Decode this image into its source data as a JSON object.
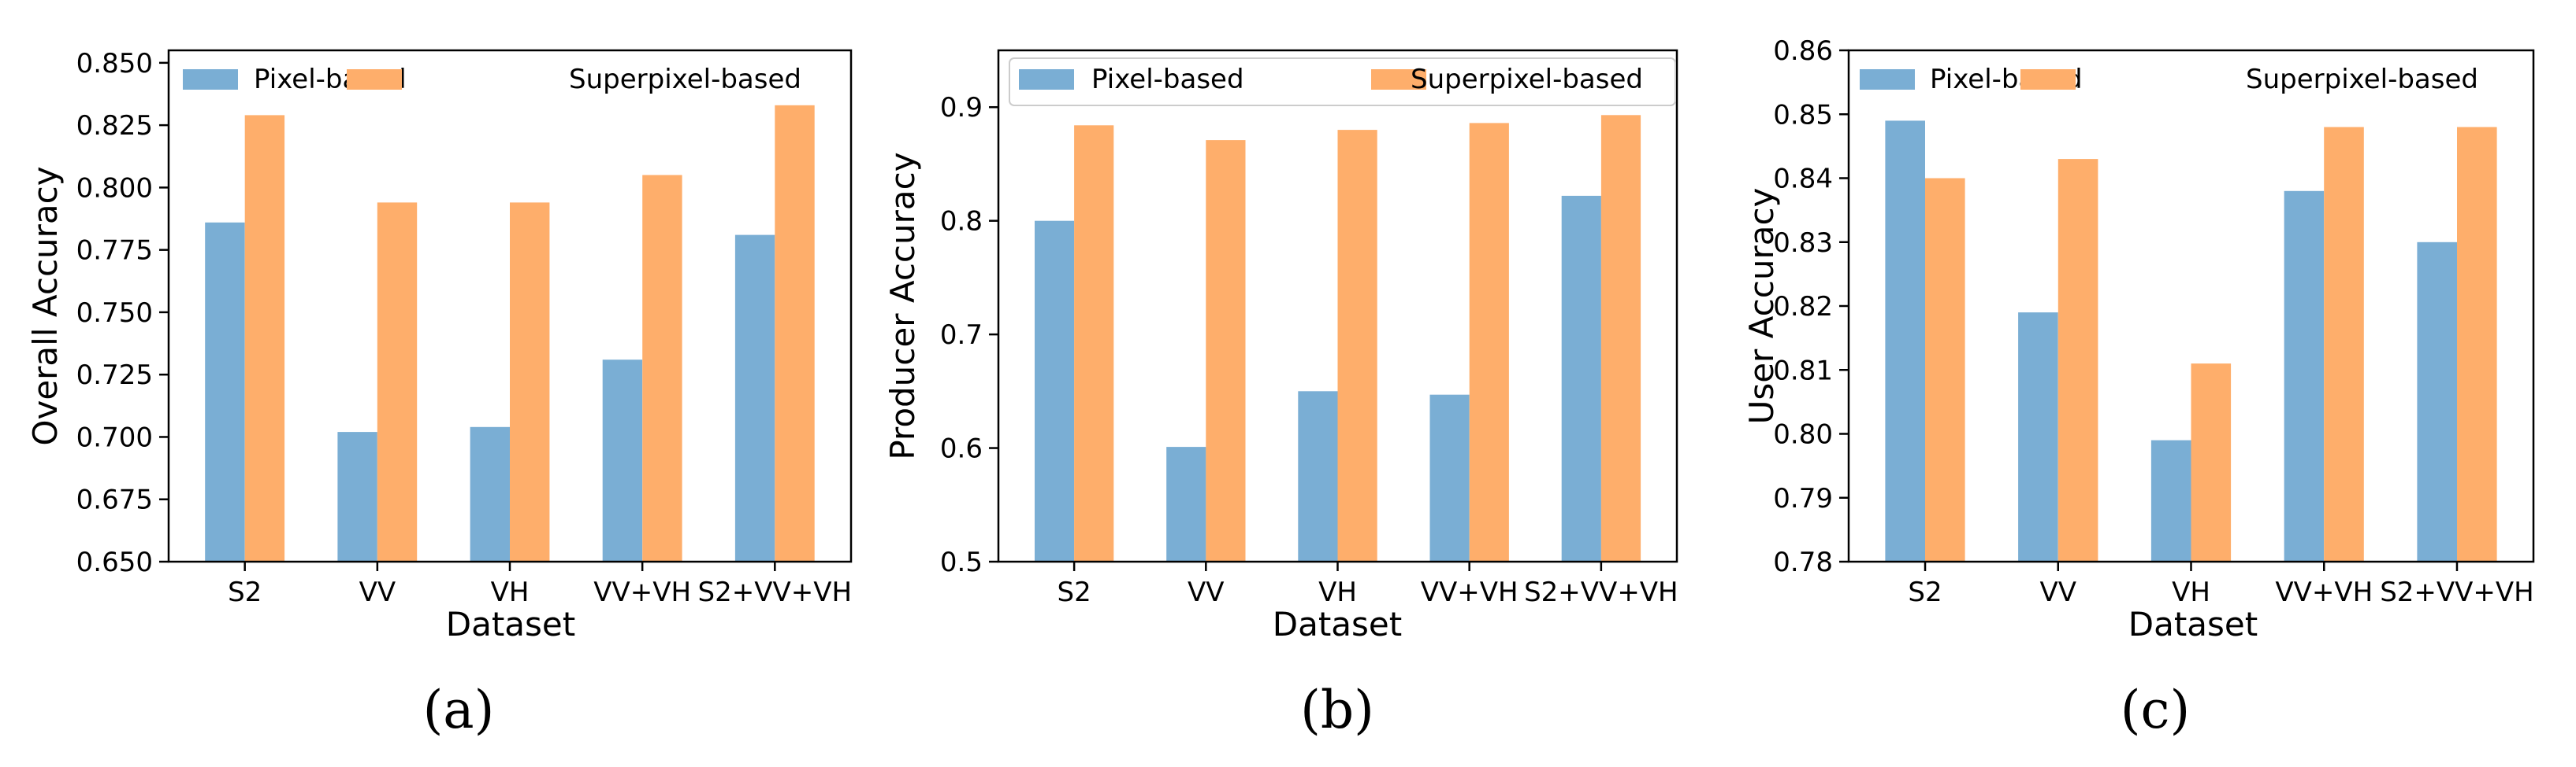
{
  "figure": {
    "legend_labels": [
      "Pixel-based",
      "Superpixel-based"
    ],
    "colors": {
      "pixel": "#7aaed4",
      "superpixel": "#feae6b",
      "axis": "#000000"
    }
  },
  "chart_data": [
    {
      "type": "bar",
      "panel_label": "(a)",
      "title": "",
      "xlabel": "Dataset",
      "ylabel": "Overall Accuracy",
      "categories": [
        "S2",
        "VV",
        "VH",
        "VV+VH",
        "S2+VV+VH"
      ],
      "series": [
        {
          "name": "Pixel-based",
          "values": [
            0.786,
            0.702,
            0.704,
            0.731,
            0.781
          ]
        },
        {
          "name": "Superpixel-based",
          "values": [
            0.829,
            0.794,
            0.794,
            0.805,
            0.833
          ]
        }
      ],
      "ylim": [
        0.65,
        0.855
      ],
      "yticks": [
        0.65,
        0.675,
        0.7,
        0.725,
        0.75,
        0.775,
        0.8,
        0.825,
        0.85
      ],
      "ytick_labels": [
        "0.650",
        "0.675",
        "0.700",
        "0.725",
        "0.750",
        "0.775",
        "0.800",
        "0.825",
        "0.850"
      ],
      "legend": {
        "position": "top",
        "frame": false
      }
    },
    {
      "type": "bar",
      "panel_label": "(b)",
      "title": "",
      "xlabel": "Dataset",
      "ylabel": "Producer Accuracy",
      "categories": [
        "S2",
        "VV",
        "VH",
        "VV+VH",
        "S2+VV+VH"
      ],
      "series": [
        {
          "name": "Pixel-based",
          "values": [
            0.8,
            0.601,
            0.65,
            0.647,
            0.822
          ]
        },
        {
          "name": "Superpixel-based",
          "values": [
            0.884,
            0.871,
            0.88,
            0.886,
            0.893
          ]
        }
      ],
      "ylim": [
        0.5,
        0.95
      ],
      "yticks": [
        0.5,
        0.6,
        0.7,
        0.8,
        0.9
      ],
      "ytick_labels": [
        "0.5",
        "0.6",
        "0.7",
        "0.8",
        "0.9"
      ],
      "legend": {
        "position": "top",
        "frame": true
      }
    },
    {
      "type": "bar",
      "panel_label": "(c)",
      "title": "",
      "xlabel": "Dataset",
      "ylabel": "User Accuracy",
      "categories": [
        "S2",
        "VV",
        "VH",
        "VV+VH",
        "S2+VV+VH"
      ],
      "series": [
        {
          "name": "Pixel-based",
          "values": [
            0.849,
            0.819,
            0.799,
            0.838,
            0.83
          ]
        },
        {
          "name": "Superpixel-based",
          "values": [
            0.84,
            0.843,
            0.811,
            0.848,
            0.848
          ]
        }
      ],
      "ylim": [
        0.78,
        0.86
      ],
      "yticks": [
        0.78,
        0.79,
        0.8,
        0.81,
        0.82,
        0.83,
        0.84,
        0.85,
        0.86
      ],
      "ytick_labels": [
        "0.78",
        "0.79",
        "0.80",
        "0.81",
        "0.82",
        "0.83",
        "0.84",
        "0.85",
        "0.86"
      ],
      "legend": {
        "position": "top",
        "frame": false
      }
    }
  ]
}
